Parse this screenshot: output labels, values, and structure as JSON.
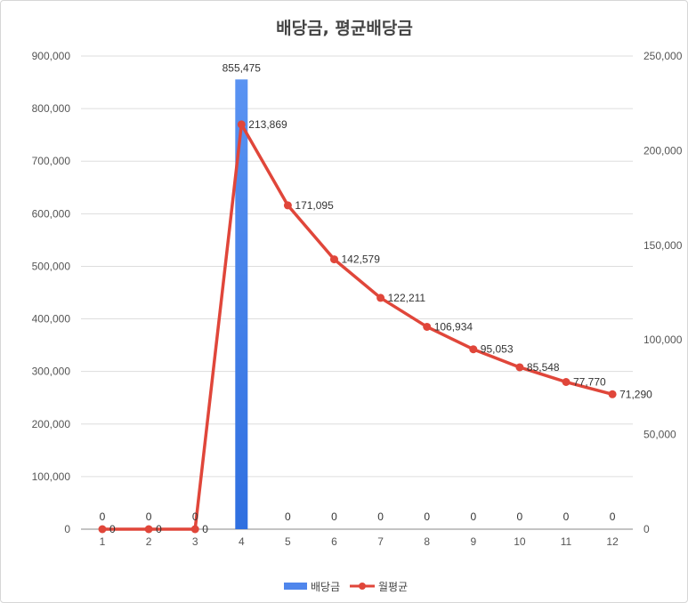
{
  "chart_data": {
    "type": "bar",
    "title": "배당금, 평균배당금",
    "categories": [
      "1",
      "2",
      "3",
      "4",
      "5",
      "6",
      "7",
      "8",
      "9",
      "10",
      "11",
      "12"
    ],
    "series": [
      {
        "name": "배당금",
        "type": "bar",
        "axis": "left",
        "color": "#4f86ec",
        "values": [
          0,
          0,
          0,
          855475,
          0,
          0,
          0,
          0,
          0,
          0,
          0,
          0
        ],
        "labels": [
          "0",
          "0",
          "0",
          "855,475",
          "0",
          "0",
          "0",
          "0",
          "0",
          "0",
          "0",
          "0"
        ]
      },
      {
        "name": "월평균",
        "type": "line",
        "axis": "right",
        "color": "#e0463a",
        "values": [
          0,
          0,
          0,
          213869,
          171095,
          142579,
          122211,
          106934,
          95053,
          85548,
          77770,
          71290
        ],
        "labels": [
          "0",
          "0",
          "0",
          "213,869",
          "171,095",
          "142,579",
          "122,211",
          "106,934",
          "95,053",
          "85,548",
          "77,770",
          "71,290"
        ]
      }
    ],
    "y_left": {
      "min": 0,
      "max": 900000,
      "ticks": [
        "0",
        "100,000",
        "200,000",
        "300,000",
        "400,000",
        "500,000",
        "600,000",
        "700,000",
        "800,000",
        "900,000"
      ]
    },
    "y_right": {
      "min": 0,
      "max": 250000,
      "ticks": [
        "0",
        "50,000",
        "100,000",
        "150,000",
        "200,000",
        "250,000"
      ]
    },
    "grid": true,
    "legend": "bottom"
  }
}
